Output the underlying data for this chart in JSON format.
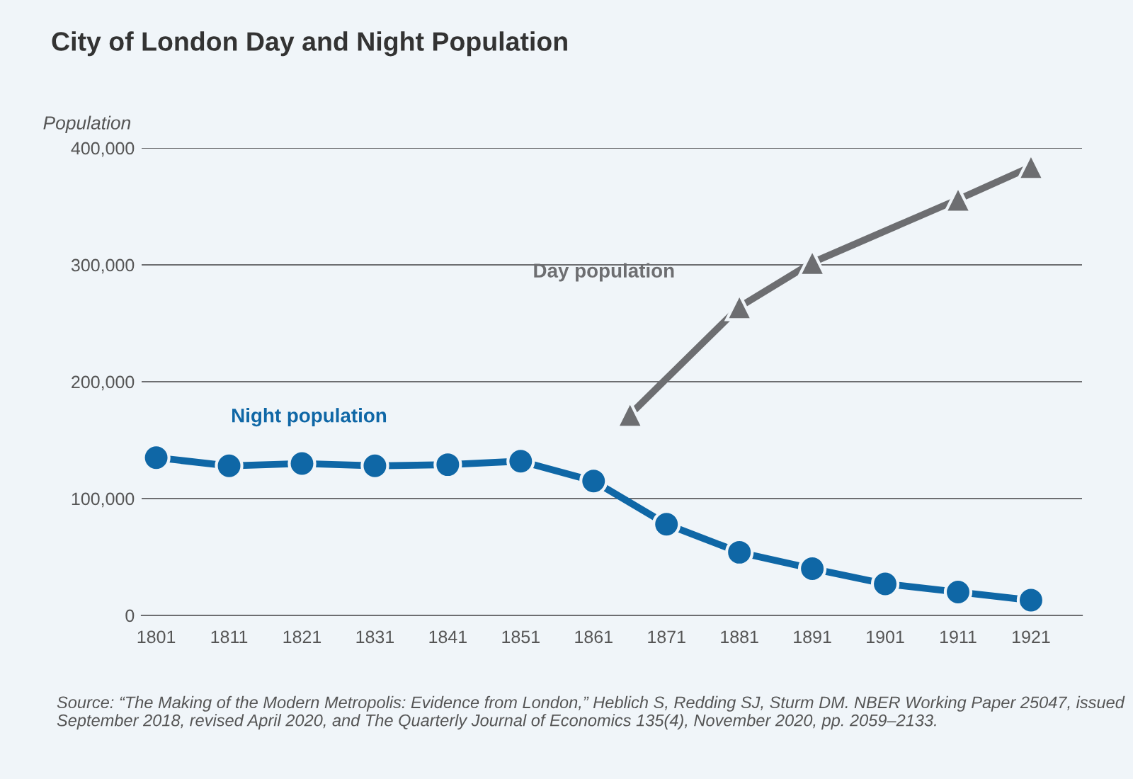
{
  "chart_data": {
    "type": "line",
    "title": "City of London Day and Night Population",
    "ylabel": "Population",
    "xlim": [
      1799,
      1928
    ],
    "xticks": [
      1801,
      1811,
      1821,
      1831,
      1841,
      1851,
      1861,
      1871,
      1881,
      1891,
      1901,
      1911,
      1921
    ],
    "ylim": [
      0,
      400000
    ],
    "yticks": [
      {
        "value": 0,
        "label": "0"
      },
      {
        "value": 100000,
        "label": "100,000"
      },
      {
        "value": 200000,
        "label": "200,000"
      },
      {
        "value": 300000,
        "label": "300,000"
      },
      {
        "value": 400000,
        "label": "400,000"
      }
    ],
    "grid": "y",
    "legend": false,
    "series": [
      {
        "name": "Night population",
        "color": "#0f67a6",
        "marker": "circle",
        "x": [
          1801,
          1811,
          1821,
          1831,
          1841,
          1851,
          1861,
          1871,
          1881,
          1891,
          1901,
          1911,
          1921
        ],
        "values": [
          135000,
          128000,
          130000,
          128000,
          129000,
          132000,
          115000,
          78000,
          54000,
          40000,
          27000,
          20000,
          13000
        ]
      },
      {
        "name": "Day population",
        "color": "#6d6e71",
        "marker": "triangle",
        "x": [
          1866,
          1881,
          1891,
          1911,
          1921
        ],
        "values": [
          172000,
          264000,
          302000,
          356000,
          384000
        ]
      }
    ],
    "annotations": [
      "Source: “The Making of the Modern Metropolis: Evidence from London,” Heblich S, Redding SJ, Sturm DM. NBER Working Paper 25047, issued September 2018, revised April 2020, and The Quarterly Journal of Economics 135(4), November 2020, pp. 2059–2133."
    ]
  }
}
